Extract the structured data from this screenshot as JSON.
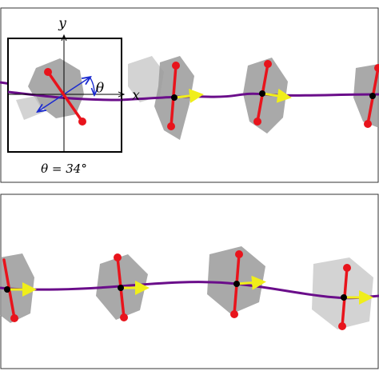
{
  "inset": {
    "y_label": "y",
    "x_label": "x",
    "angle_label": "θ",
    "caption": "θ = 34°"
  }
}
